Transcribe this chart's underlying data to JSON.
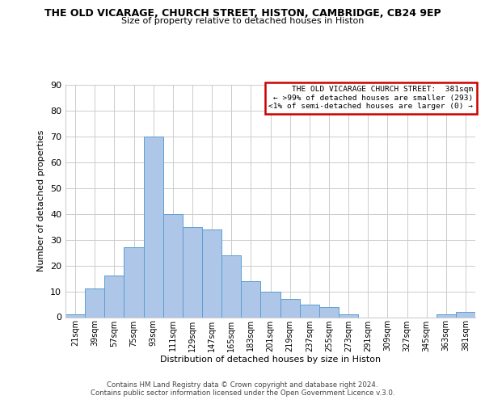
{
  "title": "THE OLD VICARAGE, CHURCH STREET, HISTON, CAMBRIDGE, CB24 9EP",
  "subtitle": "Size of property relative to detached houses in Histon",
  "xlabel": "Distribution of detached houses by size in Histon",
  "ylabel": "Number of detached properties",
  "bar_labels": [
    "21sqm",
    "39sqm",
    "57sqm",
    "75sqm",
    "93sqm",
    "111sqm",
    "129sqm",
    "147sqm",
    "165sqm",
    "183sqm",
    "201sqm",
    "219sqm",
    "237sqm",
    "255sqm",
    "273sqm",
    "291sqm",
    "309sqm",
    "327sqm",
    "345sqm",
    "363sqm",
    "381sqm"
  ],
  "bar_heights": [
    1,
    11,
    16,
    27,
    70,
    40,
    35,
    34,
    24,
    14,
    10,
    7,
    5,
    4,
    1,
    0,
    0,
    0,
    0,
    1,
    2
  ],
  "bar_color": "#aec6e8",
  "bar_edge_color": "#5a9fd4",
  "annotation_box_text": "THE OLD VICARAGE CHURCH STREET:  381sqm\n← >99% of detached houses are smaller (293)\n<1% of semi-detached houses are larger (0) →",
  "annotation_box_color": "#ffffff",
  "annotation_box_edge_color": "#cc0000",
  "ylim": [
    0,
    90
  ],
  "yticks": [
    0,
    10,
    20,
    30,
    40,
    50,
    60,
    70,
    80,
    90
  ],
  "footer_line1": "Contains HM Land Registry data © Crown copyright and database right 2024.",
  "footer_line2": "Contains public sector information licensed under the Open Government Licence v.3.0.",
  "background_color": "#ffffff",
  "grid_color": "#cccccc"
}
